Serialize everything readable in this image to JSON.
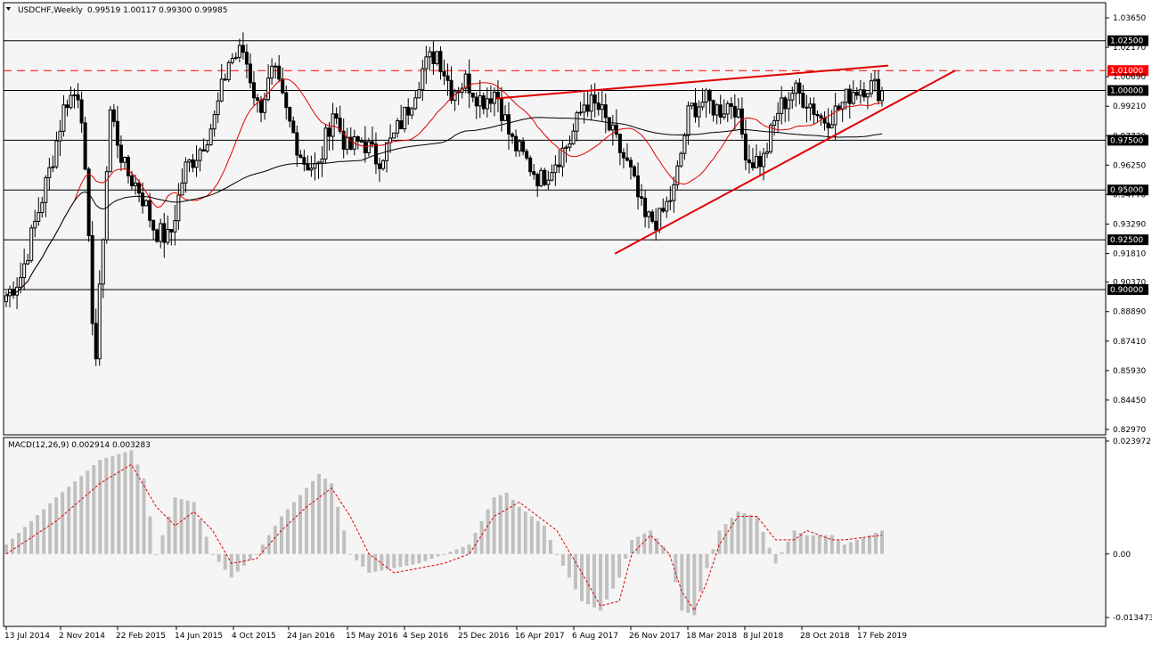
{
  "chart_data": [
    {
      "type": "candlestick",
      "title": "USDCHF,Weekly",
      "ohlc_readout": "0.99519 1.00117 0.99300 0.99985",
      "ylim": [
        0.8297,
        1.0365
      ],
      "y_ticks": [
        "1.03650",
        "1.02170",
        "1.00690",
        "0.99210",
        "0.97730",
        "0.96250",
        "0.94770",
        "0.93290",
        "0.91810",
        "0.90370",
        "0.88890",
        "0.87410",
        "0.85930",
        "0.84450",
        "0.82970"
      ],
      "horizontal_levels": [
        {
          "value": "1.02500",
          "price": 1.025,
          "style": "solid",
          "color": "#000000"
        },
        {
          "value": "1.01000",
          "price": 1.01,
          "style": "dashed",
          "color": "#ff0000"
        },
        {
          "value": "1.00000",
          "price": 1.0,
          "style": "solid",
          "color": "#000000"
        },
        {
          "value": "0.97500",
          "price": 0.975,
          "style": "solid",
          "color": "#000000"
        },
        {
          "value": "0.95000",
          "price": 0.95,
          "style": "solid",
          "color": "#000000"
        },
        {
          "value": "0.92500",
          "price": 0.925,
          "style": "solid",
          "color": "#000000"
        },
        {
          "value": "0.90000",
          "price": 0.9,
          "style": "solid",
          "color": "#000000"
        }
      ],
      "close_path": [
        [
          "13 Jul 2014",
          0.897
        ],
        [
          "Aug 2014",
          0.907
        ],
        [
          "Sep 2014",
          0.935
        ],
        [
          "Oct 2014",
          0.962
        ],
        [
          "2 Nov 2014",
          0.995
        ],
        [
          "Dec 2014",
          1.0
        ],
        [
          "Jan 2015",
          0.86
        ],
        [
          "22 Feb 2015",
          0.99
        ],
        [
          "Mar 2015",
          0.96
        ],
        [
          "Apr 2015",
          0.95
        ],
        [
          "May 2015",
          0.93
        ],
        [
          "14 Jun 2015",
          0.925
        ],
        [
          "Jul 2015",
          0.96
        ],
        [
          "Aug 2015",
          0.97
        ],
        [
          "Sep 2015",
          0.985
        ],
        [
          "4 Oct 2015",
          1.015
        ],
        [
          "Nov 2015",
          1.02
        ],
        [
          "Dec 2015",
          0.99
        ],
        [
          "24 Jan 2016",
          1.01
        ],
        [
          "Feb 2016",
          0.985
        ],
        [
          "Mar 2016",
          0.965
        ],
        [
          "Apr 2016",
          0.96
        ],
        [
          "15 May 2016",
          0.99
        ],
        [
          "Jun 2016",
          0.97
        ],
        [
          "Jul 2016",
          0.975
        ],
        [
          "Aug 2016",
          0.965
        ],
        [
          "4 Sep 2016",
          0.975
        ],
        [
          "Oct 2016",
          0.99
        ],
        [
          "Nov 2016",
          1.01
        ],
        [
          "25 Dec 2016",
          1.02
        ],
        [
          "Jan 2017",
          1.0
        ],
        [
          "Feb 2017",
          1.005
        ],
        [
          "Mar 2017",
          0.995
        ],
        [
          "16 Apr 2017",
          1.0
        ],
        [
          "May 2017",
          0.975
        ],
        [
          "Jun 2017",
          0.965
        ],
        [
          "Jul 2017",
          0.955
        ],
        [
          "6 Aug 2017",
          0.965
        ],
        [
          "Sep 2017",
          0.975
        ],
        [
          "Oct 2017",
          0.995
        ],
        [
          "Nov 2017",
          0.99
        ],
        [
          "26 Nov 2017",
          0.975
        ],
        [
          "Dec 2017",
          0.96
        ],
        [
          "Jan 2018",
          0.935
        ],
        [
          "Feb 2018",
          0.935
        ],
        [
          "18 Mar 2018",
          0.95
        ],
        [
          "Apr 2018",
          0.99
        ],
        [
          "May 2018",
          0.995
        ],
        [
          "Jun 2018",
          0.99
        ],
        [
          "8 Jul 2018",
          0.995
        ],
        [
          "Aug 2018",
          0.965
        ],
        [
          "Sep 2018",
          0.965
        ],
        [
          "Oct 2018",
          0.99
        ],
        [
          "28 Oct 2018",
          1.0
        ],
        [
          "Nov 2018",
          0.995
        ],
        [
          "Dec 2018",
          0.985
        ],
        [
          "Jan 2019",
          0.99
        ],
        [
          "17 Feb 2019",
          1.0
        ],
        [
          "Mar 2019",
          1.003
        ],
        [
          "Apr 2019",
          0.9998
        ]
      ],
      "annotations": [
        {
          "kind": "trendline",
          "color": "#e00000",
          "points": [
            [
              "16 Apr 2017",
              0.996
            ],
            [
              "Apr 2019",
              1.0125
            ]
          ]
        },
        {
          "kind": "trendline",
          "color": "#e00000",
          "points": [
            [
              "26 Nov 2017",
              0.918
            ],
            [
              "Apr 2019",
              1.01
            ]
          ]
        }
      ]
    },
    {
      "type": "histogram",
      "title": "MACD(12,26,9) 0.002914 0.003283",
      "ylim": [
        -0.013473,
        0.023972
      ],
      "y_ticks": [
        "0.023972",
        "0.00",
        "-0.013473"
      ],
      "x_ticks": [
        "13 Jul 2014",
        "2 Nov 2014",
        "22 Feb 2015",
        "14 Jun 2015",
        "4 Oct 2015",
        "24 Jan 2016",
        "15 May 2016",
        "4 Sep 2016",
        "25 Dec 2016",
        "16 Apr 2017",
        "6 Aug 2017",
        "26 Nov 2017",
        "18 Mar 2018",
        "8 Jul 2018",
        "28 Oct 2018",
        "17 Feb 2019"
      ],
      "histogram_path": [
        [
          0,
          0.002
        ],
        [
          8,
          0.012
        ],
        [
          15,
          0.02
        ],
        [
          20,
          0.022
        ],
        [
          22,
          0.016
        ],
        [
          24,
          0.0
        ],
        [
          27,
          0.012
        ],
        [
          30,
          0.011
        ],
        [
          33,
          0.0
        ],
        [
          36,
          -0.005
        ],
        [
          40,
          0.0
        ],
        [
          44,
          0.008
        ],
        [
          48,
          0.014
        ],
        [
          50,
          0.017
        ],
        [
          52,
          0.015
        ],
        [
          55,
          0.0
        ],
        [
          58,
          -0.004
        ],
        [
          62,
          -0.003
        ],
        [
          66,
          -0.002
        ],
        [
          70,
          0.0
        ],
        [
          74,
          0.002
        ],
        [
          78,
          0.012
        ],
        [
          80,
          0.013
        ],
        [
          82,
          0.01
        ],
        [
          86,
          0.006
        ],
        [
          88,
          0.0
        ],
        [
          92,
          -0.01
        ],
        [
          95,
          -0.012
        ],
        [
          98,
          -0.005
        ],
        [
          100,
          0.003
        ],
        [
          103,
          0.005
        ],
        [
          106,
          0.0
        ],
        [
          108,
          -0.012
        ],
        [
          110,
          -0.013
        ],
        [
          112,
          -0.003
        ],
        [
          114,
          0.005
        ],
        [
          117,
          0.009
        ],
        [
          120,
          0.008
        ],
        [
          123,
          -0.002
        ],
        [
          126,
          0.005
        ],
        [
          128,
          0.004
        ],
        [
          132,
          0.004
        ],
        [
          134,
          0.002
        ],
        [
          140,
          0.005
        ]
      ],
      "signal_path": [
        [
          0,
          0.0
        ],
        [
          8,
          0.007
        ],
        [
          15,
          0.015
        ],
        [
          20,
          0.019
        ],
        [
          24,
          0.01
        ],
        [
          27,
          0.006
        ],
        [
          30,
          0.009
        ],
        [
          33,
          0.005
        ],
        [
          36,
          -0.002
        ],
        [
          40,
          -0.001
        ],
        [
          44,
          0.005
        ],
        [
          48,
          0.01
        ],
        [
          52,
          0.014
        ],
        [
          55,
          0.008
        ],
        [
          58,
          0.0
        ],
        [
          62,
          -0.004
        ],
        [
          66,
          -0.003
        ],
        [
          70,
          -0.002
        ],
        [
          74,
          0.0
        ],
        [
          78,
          0.008
        ],
        [
          82,
          0.011
        ],
        [
          86,
          0.007
        ],
        [
          88,
          0.005
        ],
        [
          92,
          -0.004
        ],
        [
          95,
          -0.011
        ],
        [
          98,
          -0.01
        ],
        [
          100,
          0.0
        ],
        [
          103,
          0.004
        ],
        [
          106,
          0.0
        ],
        [
          108,
          -0.008
        ],
        [
          110,
          -0.012
        ],
        [
          112,
          -0.006
        ],
        [
          114,
          0.002
        ],
        [
          117,
          0.008
        ],
        [
          120,
          0.008
        ],
        [
          123,
          0.003
        ],
        [
          126,
          0.003
        ],
        [
          128,
          0.005
        ],
        [
          132,
          0.003
        ],
        [
          134,
          0.003
        ],
        [
          140,
          0.004
        ]
      ]
    }
  ]
}
